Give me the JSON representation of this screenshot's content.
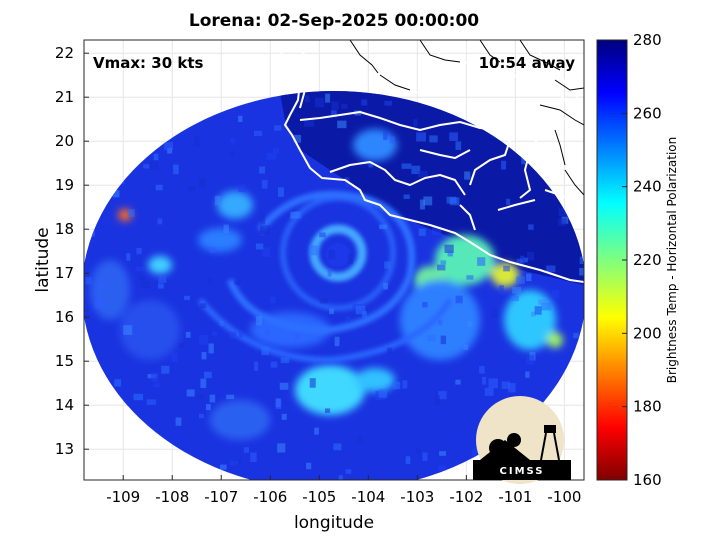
{
  "title": "Lorena: 02-Sep-2025 00:00:00",
  "overlay": {
    "vmax": "Vmax: 30 kts",
    "time_away": "10:54 away"
  },
  "x_axis": {
    "label": "longitude",
    "ticks": [
      "-109",
      "-108",
      "-107",
      "-106",
      "-105",
      "-104",
      "-103",
      "-102",
      "-101",
      "-100"
    ]
  },
  "y_axis": {
    "label": "latitude",
    "ticks": [
      "22",
      "21",
      "20",
      "19",
      "18",
      "17",
      "16",
      "15",
      "14",
      "13"
    ]
  },
  "colorbar": {
    "label": "Brightness Temp - Horizontal Polarization",
    "ticks": [
      "280",
      "260",
      "240",
      "220",
      "200",
      "180",
      "160"
    ],
    "range": [
      160,
      280
    ],
    "colormap": "jet"
  },
  "logo": {
    "text": "CIMSS"
  },
  "map": {
    "lon_range": [
      -109.8,
      -99.6
    ],
    "lat_range": [
      12.3,
      22.3
    ],
    "storm_center": {
      "lon": -104.6,
      "lat": 17.5
    },
    "background_color": "#1a33e0",
    "land_color": "#0b1aa6",
    "coastline_color": "#ffffff"
  }
}
